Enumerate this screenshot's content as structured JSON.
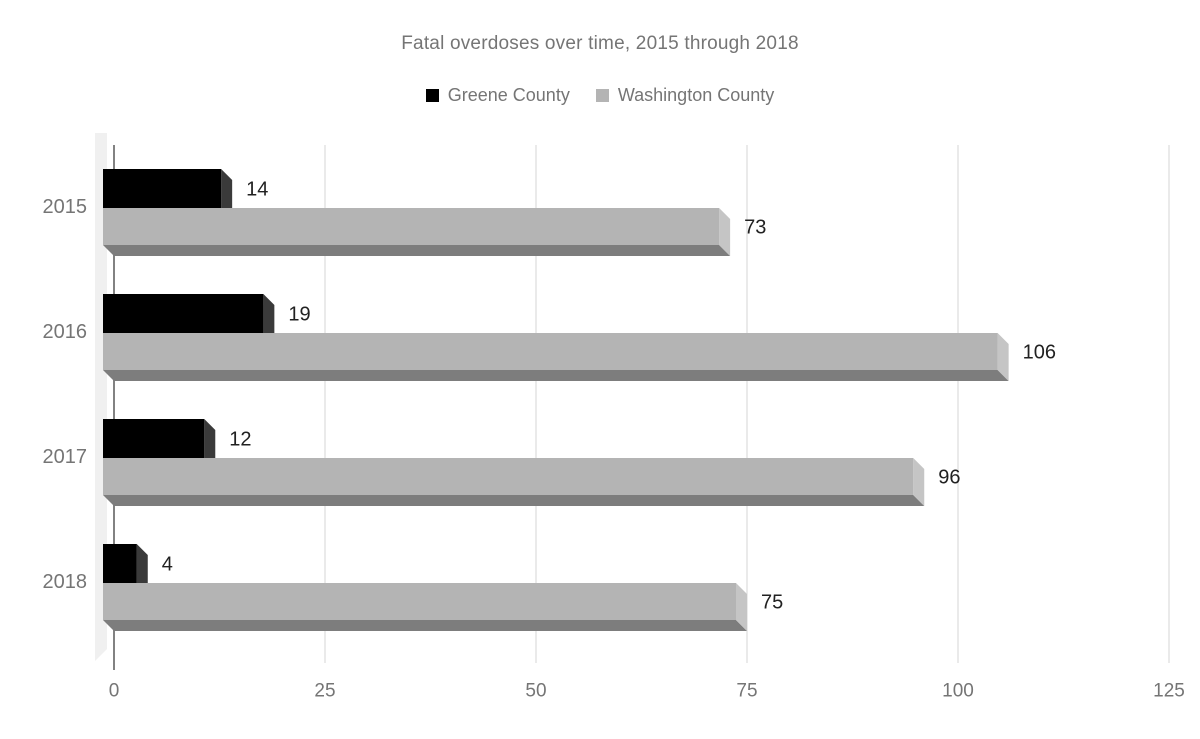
{
  "title": "Fatal overdoses over time, 2015 through 2018",
  "chart_data": {
    "type": "bar",
    "orientation": "horizontal",
    "style": "3d-beveled-bars",
    "title": "Fatal overdoses over time, 2015 through 2018",
    "categories": [
      "2015",
      "2016",
      "2017",
      "2018"
    ],
    "series": [
      {
        "name": "Greene County",
        "values": [
          14,
          19,
          12,
          4
        ],
        "face_color": "#000000",
        "side_color": "#3a3a3a",
        "bottom_color": "#2e2e2e"
      },
      {
        "name": "Washington County",
        "values": [
          73,
          106,
          96,
          75
        ],
        "face_color": "#b4b4b4",
        "side_color": "#c5c5c5",
        "bottom_color": "#7d7d7d"
      }
    ],
    "value_labels": [
      [
        "14",
        "19",
        "12",
        "4"
      ],
      [
        "73",
        "106",
        "96",
        "75"
      ]
    ],
    "x_ticks": [
      "0",
      "25",
      "50",
      "75",
      "100",
      "125"
    ],
    "xlim": [
      0,
      125
    ],
    "legend_position": "top",
    "grid": true,
    "colors": {
      "title_text": "#757575",
      "legend_text": "#757575",
      "axis_text": "#757575",
      "value_text": "#212121",
      "gridline": "#e3e3e3",
      "zero_line": "#828282",
      "wall": "#f0f0f0",
      "background": "#ffffff"
    }
  }
}
